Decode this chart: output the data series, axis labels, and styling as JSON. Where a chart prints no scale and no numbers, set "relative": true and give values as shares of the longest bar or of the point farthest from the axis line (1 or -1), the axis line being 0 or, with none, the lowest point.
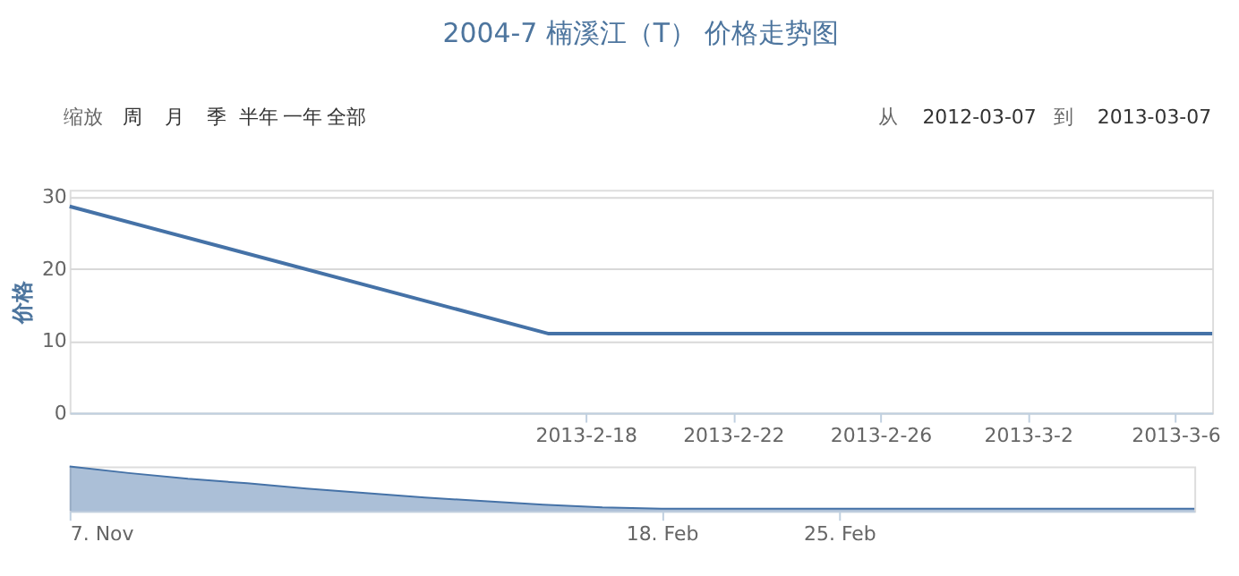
{
  "chart_data": [
    {
      "type": "line",
      "title": "2004-7 楠溪江（T） 价格走势图",
      "ylabel": "价格",
      "x": [
        "2013-02-04",
        "2013-02-17",
        "2013-03-07"
      ],
      "series": [
        {
          "color": "#4572a7",
          "values": [
            28.7,
            11,
            11
          ]
        }
      ],
      "xlim": [
        "2013-02-04",
        "2013-03-07"
      ],
      "xticks": [
        {
          "value": "2013-02-18",
          "label": "2013-2-18"
        },
        {
          "value": "2013-02-22",
          "label": "2013-2-22"
        },
        {
          "value": "2013-02-26",
          "label": "2013-2-26"
        },
        {
          "value": "2013-03-02",
          "label": "2013-3-2"
        },
        {
          "value": "2013-03-06",
          "label": "2013-3-6"
        }
      ],
      "ylim": [
        0,
        31
      ],
      "yticks": [
        0,
        10,
        20,
        30
      ],
      "grid": "y",
      "marker": "none",
      "annotations": [
        "缩放",
        "周",
        "月",
        "季",
        "半年",
        "一年",
        "全部",
        "从",
        "2012-03-07",
        "到",
        "2013-03-07"
      ]
    },
    {
      "type": "area",
      "relative": true,
      "categories": [
        "7. Nov",
        null,
        null,
        null,
        null,
        null,
        null,
        null,
        null,
        null,
        "18. Feb",
        null,
        null,
        "25. Feb",
        null,
        null,
        null,
        null,
        null,
        null
      ],
      "series": [
        {
          "color": "#4572a7",
          "values": [
            1,
            0.85,
            0.72,
            0.62,
            0.5,
            0.4,
            0.3,
            0.22,
            0.14,
            0.08,
            0.05,
            0.05,
            0.05,
            0.05,
            0.05,
            0.05,
            0.05,
            0.05,
            0.05,
            0.05
          ]
        }
      ]
    }
  ]
}
